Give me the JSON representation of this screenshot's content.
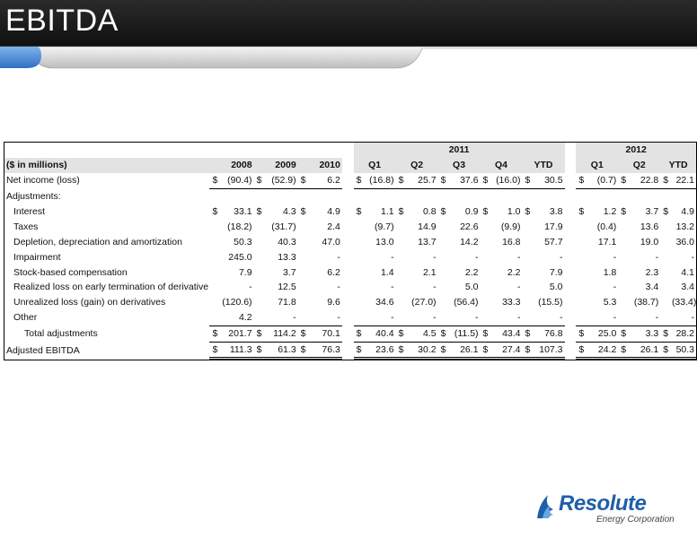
{
  "header": {
    "title": "EBITDA"
  },
  "table": {
    "group_headers": {
      "y2011": "2011",
      "y2012": "2012"
    },
    "column_headers": {
      "label": "($ in millions)",
      "c2008": "2008",
      "c2009": "2009",
      "c2010": "2010",
      "q1_11": "Q1",
      "q2_11": "Q2",
      "q3_11": "Q3",
      "q4_11": "Q4",
      "ytd_11": "YTD",
      "q1_12": "Q1",
      "q2_12": "Q2",
      "ytd_12": "YTD"
    },
    "currency_symbol": "$",
    "rows": [
      {
        "label": "Net income (loss)",
        "values": [
          "(90.4)",
          "(52.9)",
          "6.2",
          "(16.8)",
          "25.7",
          "37.6",
          "(16.0)",
          "30.5",
          "(0.7)",
          "22.8",
          "22.1"
        ]
      },
      {
        "label": "Adjustments:",
        "values": [
          "",
          "",
          "",
          "",
          "",
          "",
          "",
          "",
          "",
          "",
          ""
        ]
      },
      {
        "label": "Interest",
        "values": [
          "33.1",
          "4.3",
          "4.9",
          "1.1",
          "0.8",
          "0.9",
          "1.0",
          "3.8",
          "1.2",
          "3.7",
          "4.9"
        ]
      },
      {
        "label": "Taxes",
        "values": [
          "(18.2)",
          "(31.7)",
          "2.4",
          "(9.7)",
          "14.9",
          "22.6",
          "(9.9)",
          "17.9",
          "(0.4)",
          "13.6",
          "13.2"
        ]
      },
      {
        "label": "Depletion, depreciation and amortization",
        "values": [
          "50.3",
          "40.3",
          "47.0",
          "13.0",
          "13.7",
          "14.2",
          "16.8",
          "57.7",
          "17.1",
          "19.0",
          "36.0"
        ]
      },
      {
        "label": "Impairment",
        "values": [
          "245.0",
          "13.3",
          "-",
          "-",
          "-",
          "-",
          "-",
          "-",
          "-",
          "-",
          "-"
        ]
      },
      {
        "label": "Stock-based compensation",
        "values": [
          "7.9",
          "3.7",
          "6.2",
          "1.4",
          "2.1",
          "2.2",
          "2.2",
          "7.9",
          "1.8",
          "2.3",
          "4.1"
        ]
      },
      {
        "label": "Realized loss on early termination of derivative",
        "values": [
          "-",
          "12.5",
          "-",
          "-",
          "-",
          "5.0",
          "-",
          "5.0",
          "-",
          "3.4",
          "3.4"
        ]
      },
      {
        "label": "Unrealized loss (gain) on derivatives",
        "values": [
          "(120.6)",
          "71.8",
          "9.6",
          "34.6",
          "(27.0)",
          "(56.4)",
          "33.3",
          "(15.5)",
          "5.3",
          "(38.7)",
          "(33.4)"
        ]
      },
      {
        "label": "Other",
        "values": [
          "4.2",
          "-",
          "-",
          "-",
          "-",
          "-",
          "-",
          "-",
          "-",
          "-",
          "-"
        ]
      },
      {
        "label": "Total adjustments",
        "values": [
          "201.7",
          "114.2",
          "70.1",
          "40.4",
          "4.5",
          "(11.5)",
          "43.4",
          "76.8",
          "25.0",
          "3.3",
          "28.2"
        ]
      },
      {
        "label": "Adjusted EBITDA",
        "values": [
          "111.3",
          "61.3",
          "76.3",
          "23.6",
          "30.2",
          "26.1",
          "27.4",
          "107.3",
          "24.2",
          "26.1",
          "50.3"
        ]
      }
    ]
  },
  "logo": {
    "name": "Resolute",
    "sub": "Energy Corporation"
  }
}
